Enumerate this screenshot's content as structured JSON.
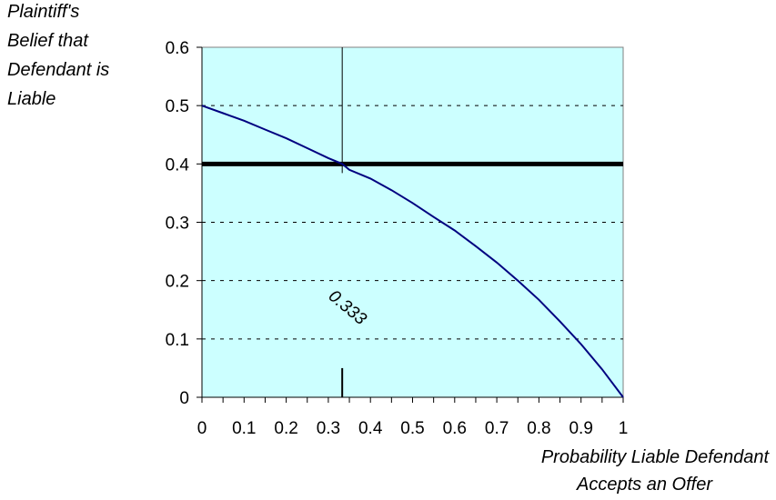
{
  "chart_data": {
    "type": "line",
    "title": "",
    "ylabel_lines": [
      "Plaintiff's",
      "Belief that",
      "Defendant is",
      "Liable"
    ],
    "xlabel_lines": [
      "Probability Liable Defendant",
      "Accepts an Offer"
    ],
    "xlim": [
      0,
      1
    ],
    "ylim": [
      0,
      0.6
    ],
    "x_ticks": [
      "0",
      "0.1",
      "0.2",
      "0.3",
      "0.4",
      "0.5",
      "0.6",
      "0.7",
      "0.8",
      "0.9",
      "1"
    ],
    "y_ticks": [
      "0",
      "0.1",
      "0.2",
      "0.3",
      "0.4",
      "0.5",
      "0.6"
    ],
    "grid": "horizontal-dashed",
    "plot_background": "#ccffff",
    "series": [
      {
        "color": "#000080",
        "x": [
          0,
          0.05,
          0.1,
          0.15,
          0.2,
          0.25,
          0.3,
          0.333,
          0.35,
          0.4,
          0.45,
          0.5,
          0.55,
          0.6,
          0.65,
          0.7,
          0.75,
          0.8,
          0.85,
          0.9,
          0.95,
          1
        ],
        "y": [
          0.5,
          0.487,
          0.474,
          0.459,
          0.444,
          0.427,
          0.41,
          0.4,
          0.39,
          0.375,
          0.355,
          0.333,
          0.309,
          0.286,
          0.259,
          0.231,
          0.2,
          0.167,
          0.13,
          0.091,
          0.048,
          0
        ]
      }
    ],
    "reference_lines": [
      {
        "orientation": "horizontal",
        "value": 0.4,
        "color": "#000000"
      },
      {
        "orientation": "vertical",
        "value": 0.333,
        "color": "#000000"
      }
    ],
    "annotation": {
      "text": "0.333",
      "x": 0.333,
      "y": 0.1
    }
  }
}
